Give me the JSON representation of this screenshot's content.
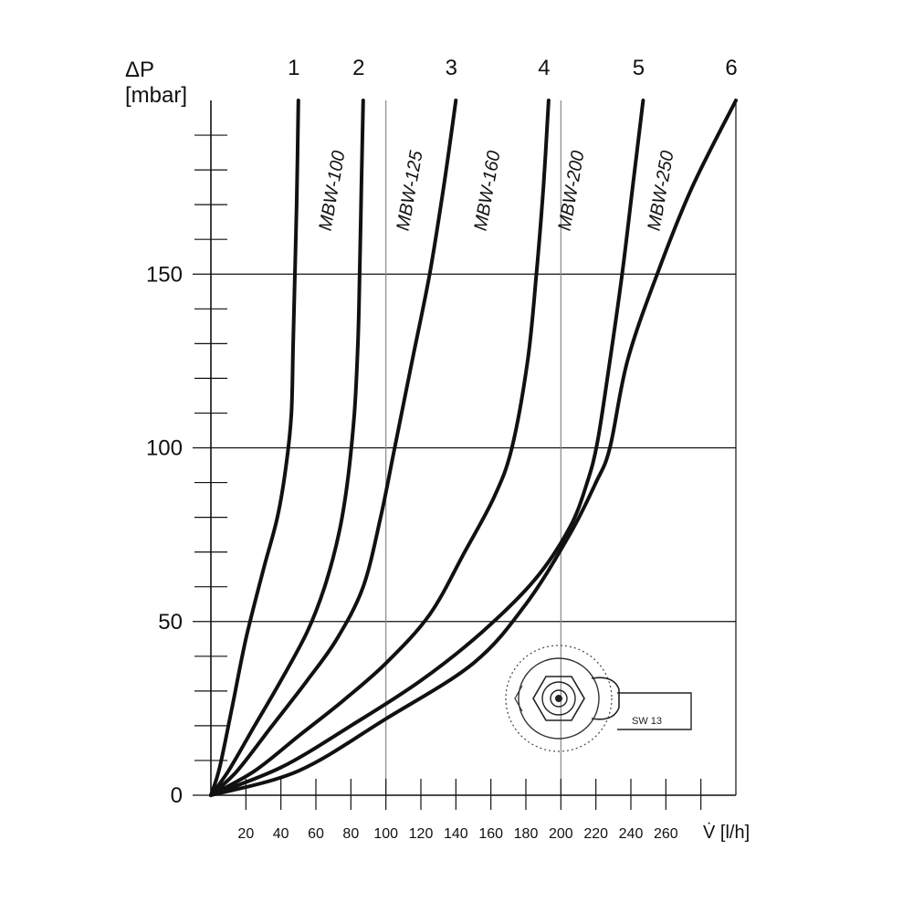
{
  "chart_data": {
    "type": "line",
    "ylabel_symbol": "ΔP",
    "ylabel_unit": "[mbar]",
    "xlabel": "V̇ [l/h]",
    "xlim": [
      0,
      300
    ],
    "ylim": [
      0,
      200
    ],
    "x_ticks": [
      20,
      40,
      60,
      80,
      100,
      120,
      140,
      160,
      180,
      200,
      220,
      240,
      260
    ],
    "x_minor_step": 20,
    "y_ticks": [
      0,
      50,
      100,
      150
    ],
    "y_minor_step": 10,
    "x_gridlines": [
      100,
      200
    ],
    "y_gridlines": [
      50,
      100,
      150
    ],
    "grid": true,
    "series": [
      {
        "name": "MBW-100",
        "number": "1",
        "points": [
          [
            0,
            0
          ],
          [
            5,
            8
          ],
          [
            12,
            25
          ],
          [
            20,
            45
          ],
          [
            30,
            65
          ],
          [
            38,
            80
          ],
          [
            43,
            95
          ],
          [
            46,
            110
          ],
          [
            47,
            130
          ],
          [
            48,
            150
          ],
          [
            49,
            170
          ],
          [
            50,
            200
          ]
        ]
      },
      {
        "name": "MBW-125",
        "number": "2",
        "points": [
          [
            0,
            0
          ],
          [
            10,
            7
          ],
          [
            25,
            20
          ],
          [
            40,
            33
          ],
          [
            55,
            47
          ],
          [
            65,
            60
          ],
          [
            73,
            75
          ],
          [
            78,
            90
          ],
          [
            82,
            110
          ],
          [
            84,
            130
          ],
          [
            85,
            150
          ],
          [
            86,
            175
          ],
          [
            87,
            200
          ]
        ]
      },
      {
        "name": "MBW-160",
        "number": "3",
        "points": [
          [
            0,
            0
          ],
          [
            15,
            7
          ],
          [
            35,
            20
          ],
          [
            55,
            33
          ],
          [
            72,
            45
          ],
          [
            87,
            60
          ],
          [
            97,
            80
          ],
          [
            105,
            100
          ],
          [
            115,
            125
          ],
          [
            125,
            150
          ],
          [
            133,
            175
          ],
          [
            140,
            200
          ]
        ]
      },
      {
        "name": "MBW-200",
        "number": "4",
        "points": [
          [
            0,
            0
          ],
          [
            25,
            7
          ],
          [
            50,
            17
          ],
          [
            75,
            27
          ],
          [
            100,
            38
          ],
          [
            125,
            52
          ],
          [
            145,
            70
          ],
          [
            162,
            86
          ],
          [
            172,
            100
          ],
          [
            181,
            125
          ],
          [
            186,
            150
          ],
          [
            190,
            175
          ],
          [
            193,
            200
          ]
        ]
      },
      {
        "name": "MBW-250",
        "number": "5",
        "points": [
          [
            0,
            0
          ],
          [
            40,
            8
          ],
          [
            80,
            20
          ],
          [
            120,
            33
          ],
          [
            155,
            47
          ],
          [
            185,
            62
          ],
          [
            205,
            77
          ],
          [
            215,
            90
          ],
          [
            221,
            102
          ],
          [
            228,
            125
          ],
          [
            235,
            150
          ],
          [
            241,
            175
          ],
          [
            247,
            200
          ]
        ]
      },
      {
        "name": "",
        "number": "6",
        "points": [
          [
            0,
            0
          ],
          [
            50,
            7
          ],
          [
            100,
            22
          ],
          [
            150,
            38
          ],
          [
            180,
            55
          ],
          [
            205,
            75
          ],
          [
            220,
            90
          ],
          [
            228,
            100
          ],
          [
            238,
            125
          ],
          [
            255,
            150
          ],
          [
            275,
            175
          ],
          [
            300,
            200
          ]
        ]
      }
    ]
  },
  "icon": {
    "name": "valve-wrench-icon",
    "label": "SW 13"
  }
}
